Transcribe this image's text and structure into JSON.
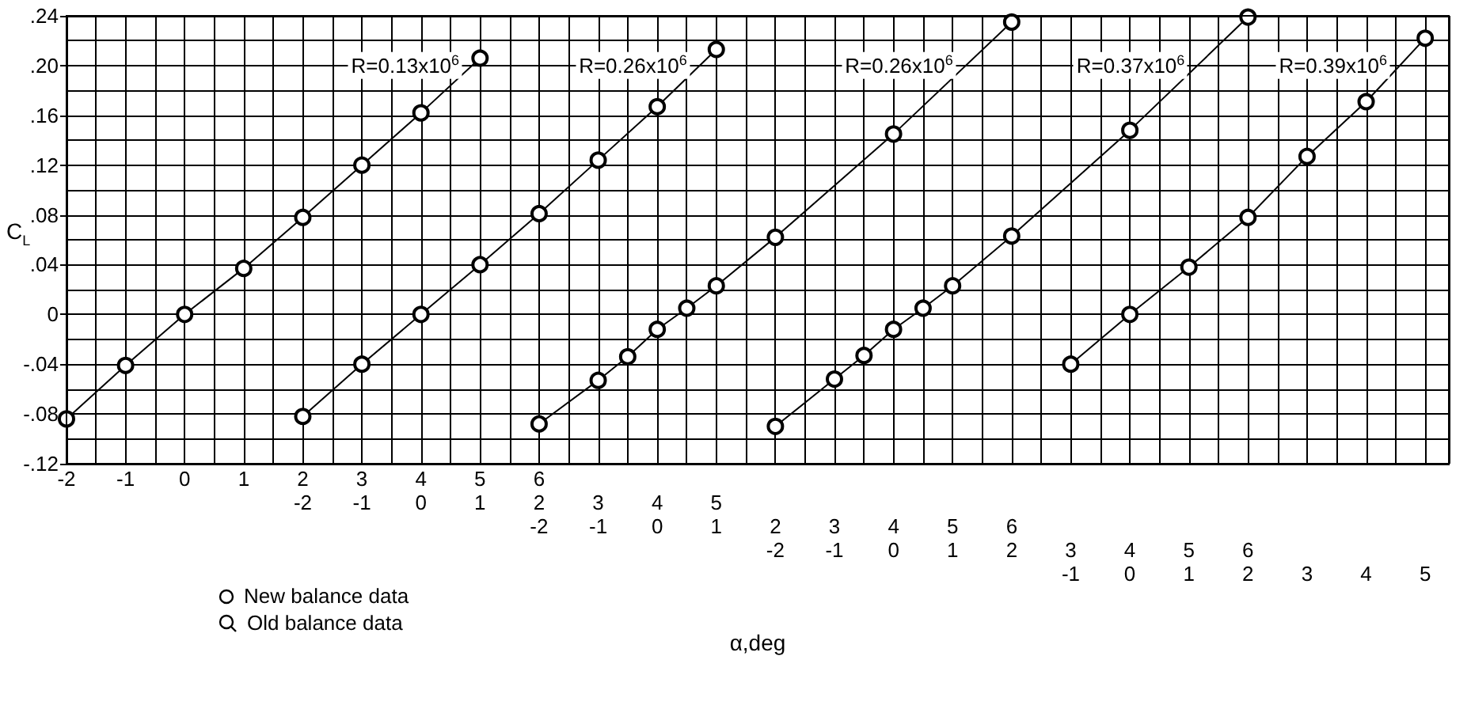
{
  "chart_data": [
    {
      "type": "line",
      "xlabel": "α,deg",
      "ylabel": "C$_{L}$",
      "annotations": [
        "New balance data",
        "Old balance data"
      ],
      "marker": "circle",
      "grid": true,
      "xlim": [
        -2,
        21.4
      ],
      "xticks": [
        -2,
        -1,
        0,
        1,
        2,
        3,
        4,
        5,
        6
      ],
      "ylim": [
        -0.12,
        0.24
      ],
      "yticks": [
        {
          "value": -0.12,
          "label": "-.12"
        },
        {
          "value": -0.08,
          "label": "-.08"
        },
        {
          "value": -0.04,
          "label": "-.04"
        },
        0,
        {
          "value": 0.04,
          "label": ".04"
        },
        {
          "value": 0.08,
          "label": ".08"
        },
        {
          "value": 0.12,
          "label": ".12"
        },
        {
          "value": 0.16,
          "label": ".16"
        },
        {
          "value": 0.2,
          "label": ".20"
        },
        {
          "value": 0.24,
          "label": ".24"
        }
      ],
      "x": [
        -2,
        -1,
        0,
        1,
        2,
        3,
        4,
        5
      ],
      "series": [
        {
          "name": "R=0.13x10$^{6}$",
          "color": "#000000",
          "values": [
            -0.084,
            -0.041,
            0,
            0.037,
            0.078,
            0.12,
            0.162,
            0.206
          ]
        }
      ]
    },
    {
      "type": "line",
      "marker": "circle",
      "tick_labels": "x",
      "xlim": [
        -6,
        17.4
      ],
      "xticks": [
        -2,
        -1,
        0,
        1,
        2,
        3,
        4,
        5
      ],
      "ylim": [
        -0.12,
        0.24
      ],
      "x": [
        -2,
        -1,
        0,
        1,
        2,
        3,
        4,
        5
      ],
      "series": [
        {
          "name": "R=0.26x10$^{6}$",
          "color": "#000000",
          "values": [
            -0.082,
            -0.04,
            0,
            0.04,
            0.081,
            0.124,
            0.167,
            0.213
          ]
        }
      ]
    },
    {
      "type": "line",
      "marker": "circle",
      "tick_labels": "x",
      "xlim": [
        -10,
        13.4
      ],
      "xticks": [
        -2,
        -1,
        0,
        1,
        2,
        3,
        4,
        5,
        6
      ],
      "ylim": [
        -0.12,
        0.24
      ],
      "x": [
        -2,
        -1,
        -0.5,
        0,
        0.5,
        1,
        2,
        4,
        6
      ],
      "series": [
        {
          "name": "R=0.26x10$^{6}$",
          "color": "#000000",
          "values": [
            -0.088,
            -0.053,
            -0.034,
            -0.012,
            0.005,
            0.023,
            0.062,
            0.145,
            0.235
          ]
        }
      ]
    },
    {
      "type": "line",
      "marker": "circle",
      "tick_labels": "x",
      "xlim": [
        -14,
        9.4
      ],
      "xticks": [
        -2,
        -1,
        0,
        1,
        2,
        3,
        4,
        5,
        6
      ],
      "ylim": [
        -0.12,
        0.24
      ],
      "x": [
        -2,
        -1,
        -0.5,
        0,
        0.5,
        1,
        2,
        4,
        6
      ],
      "series": [
        {
          "name": "R=0.37x10$^{6}$",
          "color": "#000000",
          "values": [
            -0.09,
            -0.052,
            -0.033,
            -0.012,
            0.005,
            0.023,
            0.063,
            0.148,
            0.239
          ]
        }
      ]
    },
    {
      "type": "line",
      "marker": "circle",
      "tick_labels": "x",
      "xlim": [
        -18,
        5.4
      ],
      "xticks": [
        -1,
        0,
        1,
        2,
        3,
        4,
        5
      ],
      "ylim": [
        -0.12,
        0.24
      ],
      "x": [
        -1,
        0,
        1,
        2,
        3,
        4,
        5
      ],
      "series": [
        {
          "name": "R=0.39x10$^{6}$",
          "color": "#000000",
          "values": [
            -0.04,
            0,
            0.038,
            0.078,
            0.127,
            0.171,
            0.222
          ]
        }
      ]
    }
  ]
}
